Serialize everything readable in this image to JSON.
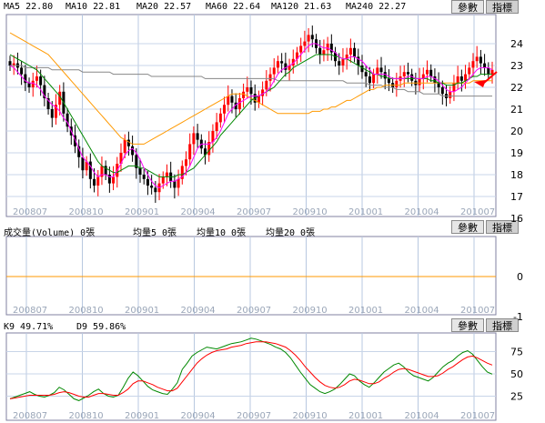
{
  "panels": {
    "price": {
      "indicators": [
        {
          "text": "MA5 22.80"
        },
        {
          "text": "MA10 22.81"
        },
        {
          "text": "MA20 22.57"
        },
        {
          "text": "MA60 22.64"
        },
        {
          "text": "MA120 21.63"
        },
        {
          "text": "MA240 22.27"
        }
      ],
      "btn1": "參數",
      "btn2": "指標"
    },
    "volume": {
      "indicators": [
        {
          "text": "成交量(Volume) 0張"
        },
        {
          "text": "均量5 0張"
        },
        {
          "text": "均量10 0張"
        },
        {
          "text": "均量20 0張"
        }
      ],
      "btn1": "參數",
      "btn2": "指標"
    },
    "kd": {
      "indicators": [
        {
          "text": "K9 49.71%"
        },
        {
          "text": "D9 59.86%"
        }
      ],
      "btn1": "參數",
      "btn2": "指標"
    }
  },
  "colors": {
    "ma5": "#ff00ff",
    "ma10": "#008800",
    "ma20": "#008800",
    "ma60": "#008800",
    "ma120": "#ff9900",
    "ma240": "#888888",
    "up": "#ff0000",
    "down": "#000000",
    "k": "#008800",
    "d": "#ff0000",
    "vol": "#ff9900",
    "arrow": "#ff0000"
  },
  "chart_data": [
    {
      "type": "candlestick",
      "x_ticks": [
        "200807",
        "200810",
        "200901",
        "200904",
        "200907",
        "200910",
        "201001",
        "201004",
        "201007"
      ],
      "ylim": [
        16,
        25
      ],
      "y_ticks": [
        16,
        17,
        18,
        19,
        20,
        21,
        22,
        23,
        24
      ],
      "grid": true,
      "close_series": [
        23.0,
        23.1,
        22.9,
        22.6,
        22.2,
        22.0,
        22.3,
        22.5,
        22.1,
        21.5,
        21.0,
        20.6,
        21.2,
        21.8,
        20.8,
        20.2,
        19.8,
        19.3,
        18.8,
        18.2,
        18.6,
        17.8,
        17.5,
        17.9,
        18.4,
        18.0,
        17.6,
        17.9,
        18.5,
        19.0,
        19.6,
        19.3,
        18.9,
        18.3,
        18.0,
        17.8,
        17.5,
        17.4,
        17.2,
        17.6,
        17.9,
        18.1,
        17.7,
        17.4,
        17.8,
        18.4,
        18.7,
        19.4,
        19.9,
        19.6,
        19.2,
        18.9,
        19.5,
        20.0,
        20.4,
        20.8,
        21.2,
        21.6,
        21.3,
        21.0,
        21.5,
        21.8,
        22.0,
        21.7,
        21.3,
        21.6,
        21.9,
        22.3,
        22.6,
        22.9,
        23.2,
        23.1,
        22.8,
        23.0,
        23.3,
        23.6,
        23.9,
        24.1,
        24.4,
        24.2,
        23.8,
        23.5,
        23.7,
        24.0,
        23.6,
        23.2,
        23.0,
        23.3,
        23.5,
        23.8,
        23.4,
        23.0,
        22.7,
        22.5,
        22.2,
        22.6,
        22.9,
        22.7,
        22.4,
        22.2,
        22.0,
        22.3,
        22.5,
        22.7,
        22.6,
        22.3,
        22.1,
        22.4,
        22.6,
        22.8,
        22.5,
        22.2,
        22.0,
        21.7,
        21.5,
        21.8,
        22.2,
        22.5,
        22.3,
        22.6,
        22.9,
        23.2,
        23.4,
        23.1,
        22.9,
        22.6,
        22.8
      ],
      "ma_series": {
        "ma5": [
          23.0,
          22.9,
          22.7,
          22.5,
          22.3,
          22.2,
          22.2,
          22.1,
          21.9,
          21.6,
          21.4,
          21.2,
          21.1,
          20.9,
          20.6,
          20.4,
          20.0,
          19.6,
          19.2,
          18.8,
          18.6,
          18.4,
          18.1,
          17.9,
          18.0,
          18.0,
          17.9,
          17.9,
          18.2,
          18.5,
          18.9,
          19.1,
          19.2,
          19.0,
          18.7,
          18.3,
          18.0,
          17.7,
          17.5,
          17.4,
          17.5,
          17.6,
          17.7,
          17.7,
          17.8,
          17.9,
          18.1,
          18.4,
          18.8,
          19.2,
          19.4,
          19.4,
          19.4,
          19.5,
          19.7,
          20.0,
          20.4,
          20.8,
          21.0,
          21.2,
          21.3,
          21.4,
          21.5,
          21.6,
          21.6,
          21.6,
          21.7,
          21.8,
          22.0,
          22.3,
          22.6,
          22.8,
          22.9,
          23.0,
          23.1,
          23.3,
          23.5,
          23.7,
          23.9,
          24.0,
          24.0,
          23.9,
          23.8,
          23.8,
          23.7,
          23.6,
          23.4,
          23.3,
          23.3,
          23.4,
          23.4,
          23.3,
          23.2,
          23.0,
          22.8,
          22.6,
          22.6,
          22.6,
          22.6,
          22.5,
          22.4,
          22.4,
          22.4,
          22.4,
          22.5,
          22.5,
          22.4,
          22.4,
          22.4,
          22.5,
          22.5,
          22.4,
          22.3,
          22.1,
          21.9,
          21.8,
          21.8,
          21.9,
          22.0,
          22.2,
          22.4,
          22.6,
          22.8,
          22.9,
          22.9,
          22.9,
          22.8
        ],
        "ma20": [
          23.5,
          23.4,
          23.3,
          23.2,
          23.1,
          23.0,
          22.9,
          22.8,
          22.6,
          22.4,
          22.2,
          22.0,
          21.8,
          21.6,
          21.3,
          21.0,
          20.7,
          20.4,
          20.1,
          19.8,
          19.5,
          19.2,
          18.9,
          18.6,
          18.4,
          18.3,
          18.2,
          18.1,
          18.1,
          18.2,
          18.3,
          18.4,
          18.4,
          18.4,
          18.3,
          18.3,
          18.2,
          18.1,
          18.0,
          17.9,
          17.9,
          17.9,
          17.9,
          17.9,
          18.0,
          18.0,
          18.1,
          18.2,
          18.3,
          18.5,
          18.7,
          18.9,
          19.1,
          19.3,
          19.5,
          19.8,
          20.0,
          20.2,
          20.4,
          20.6,
          20.8,
          21.0,
          21.2,
          21.4,
          21.5,
          21.6,
          21.7,
          21.8,
          21.9,
          22.0,
          22.2,
          22.4,
          22.6,
          22.7,
          22.9,
          23.0,
          23.1,
          23.2,
          23.3,
          23.4,
          23.5,
          23.5,
          23.5,
          23.5,
          23.5,
          23.4,
          23.4,
          23.3,
          23.3,
          23.2,
          23.1,
          23.0,
          22.9,
          22.8,
          22.7,
          22.6,
          22.6,
          22.5,
          22.5,
          22.4,
          22.4,
          22.4,
          22.4,
          22.4,
          22.4,
          22.4,
          22.4,
          22.4,
          22.4,
          22.4,
          22.3,
          22.3,
          22.2,
          22.2,
          22.1,
          22.1,
          22.1,
          22.2,
          22.2,
          22.3,
          22.4,
          22.5,
          22.5,
          22.6,
          22.6,
          22.6,
          22.6
        ],
        "ma120": [
          24.5,
          24.4,
          24.3,
          24.2,
          24.1,
          24.0,
          23.9,
          23.8,
          23.7,
          23.6,
          23.5,
          23.3,
          23.1,
          22.9,
          22.7,
          22.5,
          22.3,
          22.1,
          21.9,
          21.7,
          21.5,
          21.3,
          21.1,
          20.9,
          20.7,
          20.5,
          20.3,
          20.1,
          19.9,
          19.7,
          19.6,
          19.5,
          19.4,
          19.4,
          19.4,
          19.4,
          19.5,
          19.6,
          19.7,
          19.8,
          19.9,
          20.0,
          20.1,
          20.2,
          20.3,
          20.4,
          20.5,
          20.6,
          20.7,
          20.8,
          20.9,
          21.0,
          21.1,
          21.2,
          21.3,
          21.4,
          21.5,
          21.6,
          21.7,
          21.7,
          21.7,
          21.7,
          21.6,
          21.5,
          21.4,
          21.3,
          21.2,
          21.1,
          21.0,
          20.9,
          20.8,
          20.8,
          20.8,
          20.8,
          20.8,
          20.8,
          20.8,
          20.8,
          20.8,
          20.9,
          20.9,
          20.9,
          21.0,
          21.0,
          21.1,
          21.1,
          21.2,
          21.3,
          21.4,
          21.4,
          21.5,
          21.6,
          21.7,
          21.8,
          21.9,
          21.9,
          22.0,
          22.0,
          22.1,
          22.1,
          22.1,
          22.1,
          22.1,
          22.2,
          22.2,
          22.2,
          22.2,
          22.2,
          22.2,
          22.2,
          22.2,
          22.2,
          22.2,
          22.2,
          22.2,
          22.2,
          22.2,
          22.2,
          22.2,
          22.2,
          22.2,
          22.3,
          22.3,
          22.3,
          22.3,
          22.3,
          22.3
        ],
        "ma240": [
          23.0,
          23.0,
          23.0,
          23.0,
          22.9,
          22.9,
          22.9,
          22.9,
          22.9,
          22.9,
          22.9,
          22.8,
          22.8,
          22.8,
          22.8,
          22.8,
          22.8,
          22.8,
          22.8,
          22.7,
          22.7,
          22.7,
          22.7,
          22.7,
          22.7,
          22.7,
          22.7,
          22.6,
          22.6,
          22.6,
          22.6,
          22.6,
          22.6,
          22.6,
          22.6,
          22.6,
          22.6,
          22.5,
          22.5,
          22.5,
          22.5,
          22.5,
          22.5,
          22.5,
          22.5,
          22.5,
          22.5,
          22.5,
          22.5,
          22.5,
          22.5,
          22.4,
          22.4,
          22.4,
          22.4,
          22.4,
          22.4,
          22.4,
          22.4,
          22.4,
          22.4,
          22.4,
          22.4,
          22.4,
          22.4,
          22.4,
          22.4,
          22.4,
          22.4,
          22.4,
          22.3,
          22.3,
          22.3,
          22.3,
          22.3,
          22.3,
          22.3,
          22.3,
          22.3,
          22.3,
          22.3,
          22.3,
          22.3,
          22.3,
          22.3,
          22.3,
          22.3,
          22.3,
          22.2,
          22.2,
          22.2,
          22.2,
          22.2,
          22.2,
          22.1,
          22.1,
          22.1,
          22.1,
          22.0,
          22.0,
          22.0,
          21.9,
          21.9,
          21.9,
          21.8,
          21.8,
          21.8,
          21.8,
          21.7,
          21.7,
          21.7,
          21.7,
          21.7,
          21.6,
          21.6,
          21.6,
          21.6,
          21.6,
          21.6,
          21.6,
          21.6,
          21.6,
          21.6,
          21.6,
          21.6,
          21.6,
          21.6
        ]
      }
    },
    {
      "type": "line",
      "ylim": [
        -1,
        1
      ],
      "y_ticks": [
        -1,
        0
      ],
      "values_constant": 0
    },
    {
      "type": "line",
      "ylim": [
        0,
        100
      ],
      "y_ticks": [
        25,
        50,
        75
      ],
      "series": [
        {
          "name": "K9",
          "values": [
            22,
            24,
            26,
            28,
            30,
            27,
            25,
            24,
            26,
            29,
            35,
            32,
            27,
            22,
            20,
            23,
            26,
            30,
            33,
            28,
            25,
            24,
            26,
            35,
            45,
            52,
            48,
            42,
            36,
            32,
            30,
            28,
            27,
            33,
            40,
            55,
            62,
            70,
            74,
            77,
            80,
            79,
            78,
            80,
            82,
            84,
            85,
            86,
            88,
            90,
            89,
            87,
            85,
            83,
            80,
            78,
            74,
            68,
            60,
            52,
            45,
            38,
            34,
            30,
            28,
            30,
            33,
            38,
            44,
            50,
            48,
            42,
            38,
            35,
            40,
            46,
            52,
            56,
            60,
            62,
            58,
            52,
            48,
            46,
            44,
            42,
            46,
            52,
            58,
            62,
            65,
            70,
            74,
            76,
            72,
            65,
            58,
            52,
            49.7
          ]
        },
        {
          "name": "D9",
          "values": [
            22,
            23,
            24,
            25,
            26,
            26,
            26,
            26,
            26,
            27,
            29,
            30,
            29,
            27,
            25,
            24,
            24,
            26,
            28,
            28,
            27,
            26,
            26,
            29,
            33,
            39,
            42,
            42,
            40,
            38,
            35,
            33,
            31,
            31,
            34,
            41,
            48,
            55,
            62,
            67,
            71,
            74,
            76,
            77,
            78,
            80,
            81,
            82,
            84,
            85,
            86,
            86,
            86,
            85,
            84,
            82,
            80,
            76,
            71,
            65,
            58,
            52,
            46,
            41,
            37,
            35,
            34,
            35,
            38,
            42,
            44,
            43,
            41,
            39,
            39,
            41,
            45,
            48,
            52,
            55,
            56,
            55,
            53,
            51,
            49,
            47,
            47,
            48,
            51,
            55,
            58,
            62,
            66,
            69,
            70,
            68,
            65,
            62,
            59.9
          ]
        }
      ]
    }
  ]
}
